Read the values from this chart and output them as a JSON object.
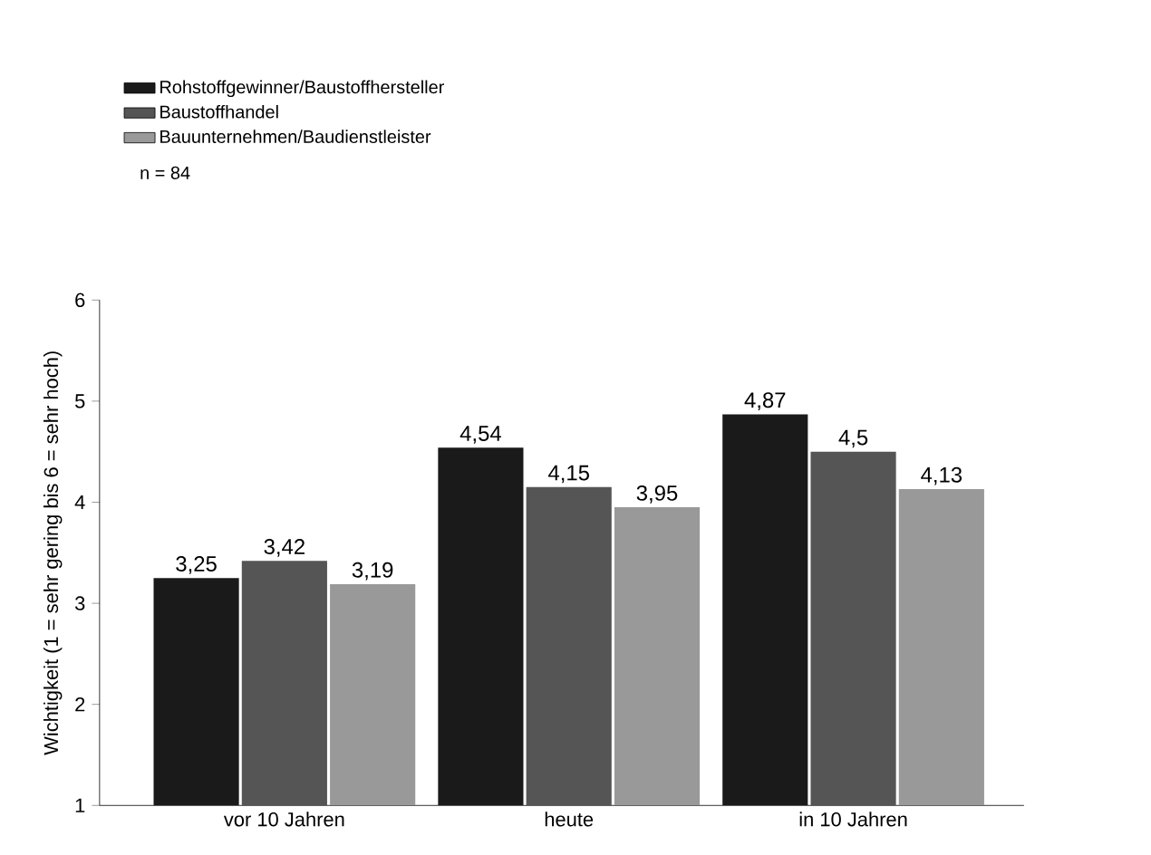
{
  "chart_data": {
    "type": "bar",
    "ylabel": "Wichtigkeit (1 = sehr gering bis 6 = sehr hoch)",
    "categories": [
      "vor 10 Jahren",
      "heute",
      "in 10 Jahren"
    ],
    "series": [
      {
        "name": "Rohstoffgewinner/Baustoffhersteller",
        "color": "#1a1a1a",
        "values": [
          3.25,
          4.54,
          4.87
        ],
        "value_labels": [
          "3,25",
          "4,54",
          "4,87"
        ]
      },
      {
        "name": "Baustoffhandel",
        "color": "#555555",
        "values": [
          3.42,
          4.15,
          4.5
        ],
        "value_labels": [
          "3,42",
          "4,15",
          "4,5"
        ]
      },
      {
        "name": "Bauunternehmen/Baudienstleister",
        "color": "#999999",
        "values": [
          3.19,
          3.95,
          4.13
        ],
        "value_labels": [
          "3,19",
          "3,95",
          "4,13"
        ]
      }
    ],
    "annotations": [
      "n = 84"
    ],
    "ylim": [
      1,
      6
    ],
    "yticks": [
      1,
      2,
      3,
      4,
      5,
      6
    ],
    "legend": "top left",
    "grid": false
  }
}
